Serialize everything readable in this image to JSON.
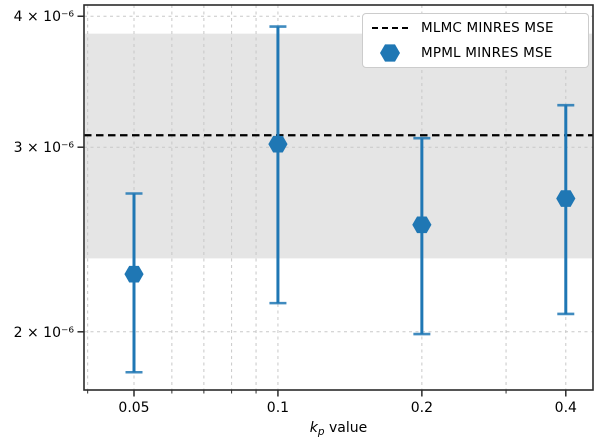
{
  "chart_data": {
    "type": "scatter",
    "title": "",
    "xscale": "log",
    "yscale": "log",
    "xlabel_parts": {
      "symbol": "k",
      "subscript": "p",
      "suffix": " value"
    },
    "ylabel": "",
    "xlim": [
      0.0393,
      0.456
    ],
    "ylim": [
      1.76e-06,
      4.1e-06
    ],
    "x_ticks": [
      {
        "value": 0.05,
        "label": "0.05"
      },
      {
        "value": 0.1,
        "label": "0.1"
      },
      {
        "value": 0.2,
        "label": "0.2"
      },
      {
        "value": 0.4,
        "label": "0.4"
      }
    ],
    "x_minor_gridlines": [
      0.04,
      0.06,
      0.07,
      0.08,
      0.09,
      0.3
    ],
    "y_ticks": [
      {
        "value": 2e-06,
        "label": "2 × 10⁻⁶"
      },
      {
        "value": 3e-06,
        "label": "3 × 10⁻⁶"
      },
      {
        "value": 4e-06,
        "label": "4 × 10⁻⁶"
      }
    ],
    "grid": {
      "visible": true,
      "style": "dashed",
      "color": "#c8c8c8"
    },
    "band": {
      "low": 2.35e-06,
      "high": 3.85e-06,
      "color": "#e5e5e5"
    },
    "series": [
      {
        "name": "MLMC MINRES MSE",
        "type": "hline",
        "value": 3.08e-06,
        "color": "#000000",
        "style": "dashed"
      },
      {
        "name": "MPML MINRES MSE",
        "type": "errorbar",
        "color": "#1f77b4",
        "marker": "hexagon",
        "points": [
          {
            "x": 0.05,
            "y": 2.27e-06,
            "err_low": 1.83e-06,
            "err_high": 2.71e-06
          },
          {
            "x": 0.1,
            "y": 3.02e-06,
            "err_low": 2.13e-06,
            "err_high": 3.91e-06
          },
          {
            "x": 0.2,
            "y": 2.53e-06,
            "err_low": 1.99e-06,
            "err_high": 3.06e-06
          },
          {
            "x": 0.4,
            "y": 2.68e-06,
            "err_low": 2.08e-06,
            "err_high": 3.29e-06
          }
        ]
      }
    ],
    "legend": {
      "position": "upper right",
      "entries": [
        {
          "swatch": "dashed-line",
          "label": "MLMC MINRES MSE"
        },
        {
          "swatch": "hexagon",
          "label": "MPML MINRES MSE"
        }
      ]
    }
  }
}
